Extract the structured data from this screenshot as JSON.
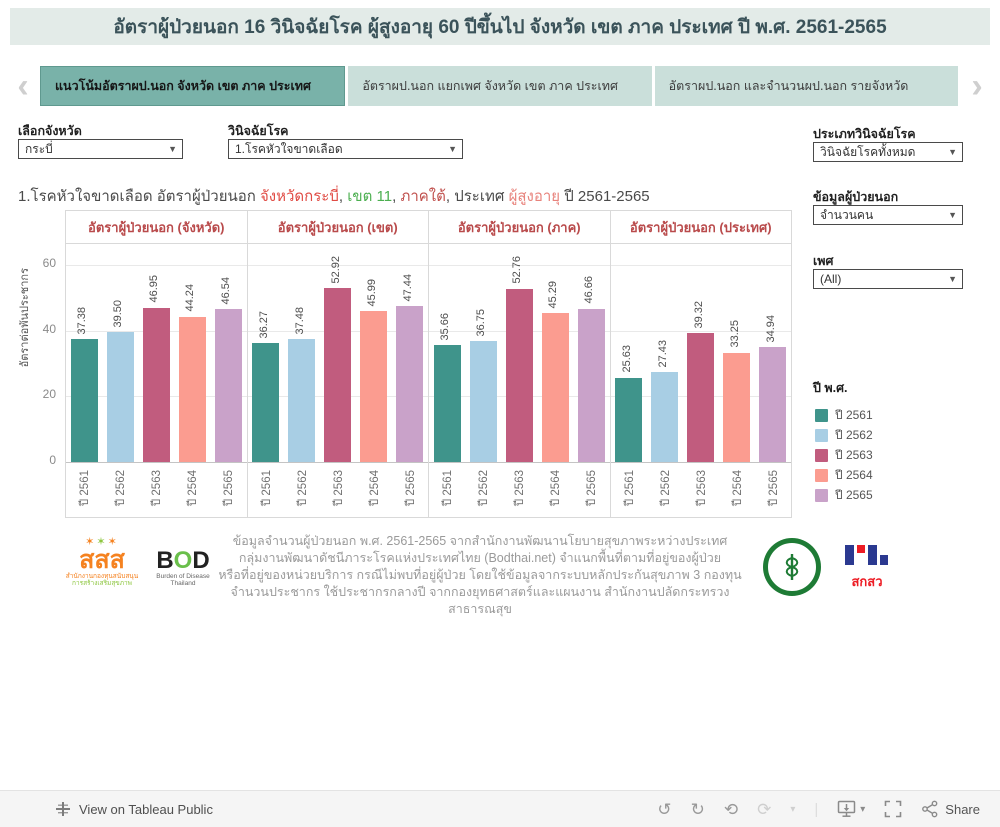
{
  "title": "อัตราผู้ป่วยนอก 16 วินิจฉัยโรค ผู้สูงอายุ 60 ปีขึ้นไป จังหวัด เขต ภาค ประเทศ ปี พ.ศ. 2561-2565",
  "nav": {
    "prev_arrow": "‹",
    "next_arrow": "›"
  },
  "tabs": [
    {
      "label": "แนวโน้มอัตราผป.นอก จังหวัด เขต ภาค ประเทศ",
      "active": true
    },
    {
      "label": "อัตราผป.นอก แยกเพศ จังหวัด เขต ภาค ประเทศ",
      "active": false
    },
    {
      "label": "อัตราผป.นอก และจำนวนผป.นอก รายจังหวัด",
      "active": false
    }
  ],
  "filters": {
    "province": {
      "label": "เลือกจังหวัด",
      "value": "กระบี่"
    },
    "diagnosis": {
      "label": "วินิจฉัยโรค",
      "value": "1.โรคหัวใจขาดเลือด"
    },
    "diagnosis_type": {
      "label": "ประเภทวินิจฉัยโรค",
      "value": "วินิจฉัยโรคทั้งหมด"
    },
    "patient_data": {
      "label": "ข้อมูลผู้ป่วยนอก",
      "value": "จำนวนคน"
    },
    "sex": {
      "label": "เพศ",
      "value": "(All)"
    }
  },
  "subtitle_segments": [
    {
      "text": "1.โรคหัวใจขาดเลือด อัตราผู้ป่วยนอก ",
      "color": "#4a4a4a"
    },
    {
      "text": "จังหวัดกระบี่",
      "color": "#e04b44"
    },
    {
      "text": ", ",
      "color": "#4a4a4a"
    },
    {
      "text": "เขต 11",
      "color": "#4caf50"
    },
    {
      "text": ", ",
      "color": "#4a4a4a"
    },
    {
      "text": "ภาคใต้",
      "color": "#c0504d"
    },
    {
      "text": ", ประเทศ ",
      "color": "#4a4a4a"
    },
    {
      "text": "ผู้สูงอายุ",
      "color": "#e8837c"
    },
    {
      "text": " ปี 2561-2565",
      "color": "#4a4a4a"
    }
  ],
  "chart_data": {
    "type": "bar",
    "categories": [
      "ปี 2561",
      "ปี 2562",
      "ปี 2563",
      "ปี 2564",
      "ปี 2565"
    ],
    "panels": [
      {
        "title": "อัตราผู้ป่วยนอก (จังหวัด)",
        "values": [
          37.38,
          39.5,
          46.95,
          44.24,
          46.54
        ]
      },
      {
        "title": "อัตราผู้ป่วยนอก (เขต)",
        "values": [
          36.27,
          37.48,
          52.92,
          45.99,
          47.44
        ]
      },
      {
        "title": "อัตราผู้ป่วยนอก (ภาค)",
        "values": [
          35.66,
          36.75,
          52.76,
          45.29,
          46.66
        ]
      },
      {
        "title": "อัตราผู้ป่วยนอก (ประเทศ)",
        "values": [
          25.63,
          27.43,
          39.32,
          33.25,
          34.94
        ]
      }
    ],
    "colors": [
      "#3f948b",
      "#a8cee4",
      "#c15c7e",
      "#fb9c90",
      "#c9a2c9"
    ],
    "ylabel": "อัตราต่อพันประชากร",
    "yticks": [
      0,
      20,
      40,
      60
    ],
    "ylim": [
      0,
      66
    ],
    "grid": true,
    "legend_position": "right"
  },
  "legend": {
    "title": "ปี พ.ศ.",
    "items": [
      {
        "label": "ปี 2561",
        "color": "#3f948b"
      },
      {
        "label": "ปี 2562",
        "color": "#a8cee4"
      },
      {
        "label": "ปี 2563",
        "color": "#c15c7e"
      },
      {
        "label": "ปี 2564",
        "color": "#fb9c90"
      },
      {
        "label": "ปี 2565",
        "color": "#c9a2c9"
      }
    ]
  },
  "footer": {
    "lines": [
      "ข้อมูลจำนวนผู้ป่วยนอก พ.ศ. 2561-2565 จากสำนักงานพัฒนานโยบายสุขภาพระหว่างประเทศ",
      "กลุ่มงานพัฒนาดัชนีภาระโรคแห่งประเทศไทย (Bodthai.net) จำแนกพื้นที่ตามที่อยู่ของผู้ป่วย",
      "หรือที่อยู่ของหน่วยบริการ กรณีไม่พบที่อยู่ผู้ป่วย โดยใช้ข้อมูลจากระบบหลักประกันสุขภาพ 3 กองทุน",
      "จำนวนประชากร ใช้ประชากรกลางปี จากกองยุทธศาสตร์และแผนงาน สำนักงานปลัดกระทรวงสาธารณสุข"
    ],
    "logos": {
      "thaihealth": {
        "stars": "✶✶✶",
        "text": "สสส",
        "sub1": "สำนักงานกองทุนสนับสนุน",
        "sub2": "การสร้างเสริมสุขภาพ"
      },
      "bod": {
        "b": "B",
        "o": "O",
        "d": "D",
        "sub": "Burden of Disease Thailand"
      },
      "tsri": {
        "text": "สกสว"
      }
    }
  },
  "toolbar": {
    "view_label": "View on Tableau Public",
    "share_label": "Share"
  }
}
